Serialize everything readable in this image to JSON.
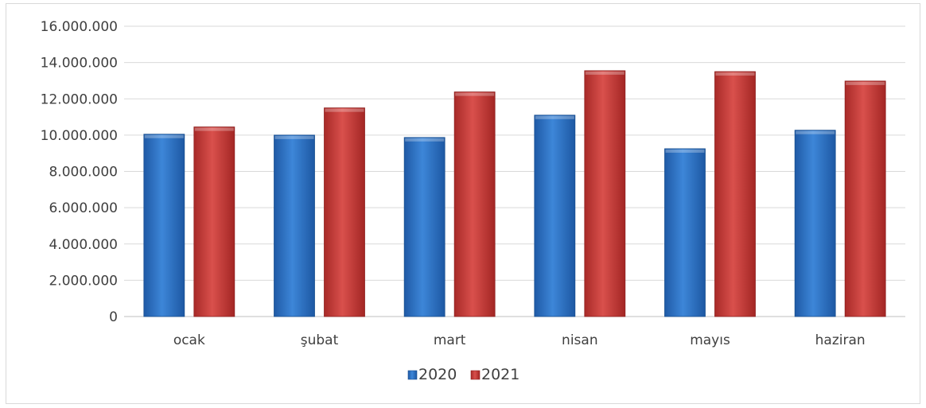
{
  "chart_data": {
    "type": "bar",
    "categories": [
      "ocak",
      "şubat",
      "mart",
      "nisan",
      "mayıs",
      "haziran"
    ],
    "series": [
      {
        "name": "2020",
        "color": "#2e75c9",
        "values": [
          10050000,
          10000000,
          9870000,
          11100000,
          9250000,
          10270000
        ]
      },
      {
        "name": "2021",
        "color": "#c63a38",
        "values": [
          10450000,
          11500000,
          12380000,
          13550000,
          13500000,
          12980000
        ]
      }
    ],
    "ylim": [
      0,
      16000000
    ],
    "yticks": [
      0,
      2000000,
      4000000,
      6000000,
      8000000,
      10000000,
      12000000,
      14000000,
      16000000
    ],
    "ytick_labels": [
      "0",
      "2.000.000",
      "4.000.000",
      "6.000.000",
      "8.000.000",
      "10.000.000",
      "12.000.000",
      "14.000.000",
      "16.000.000"
    ],
    "grid": true,
    "legend_position": "bottom"
  }
}
